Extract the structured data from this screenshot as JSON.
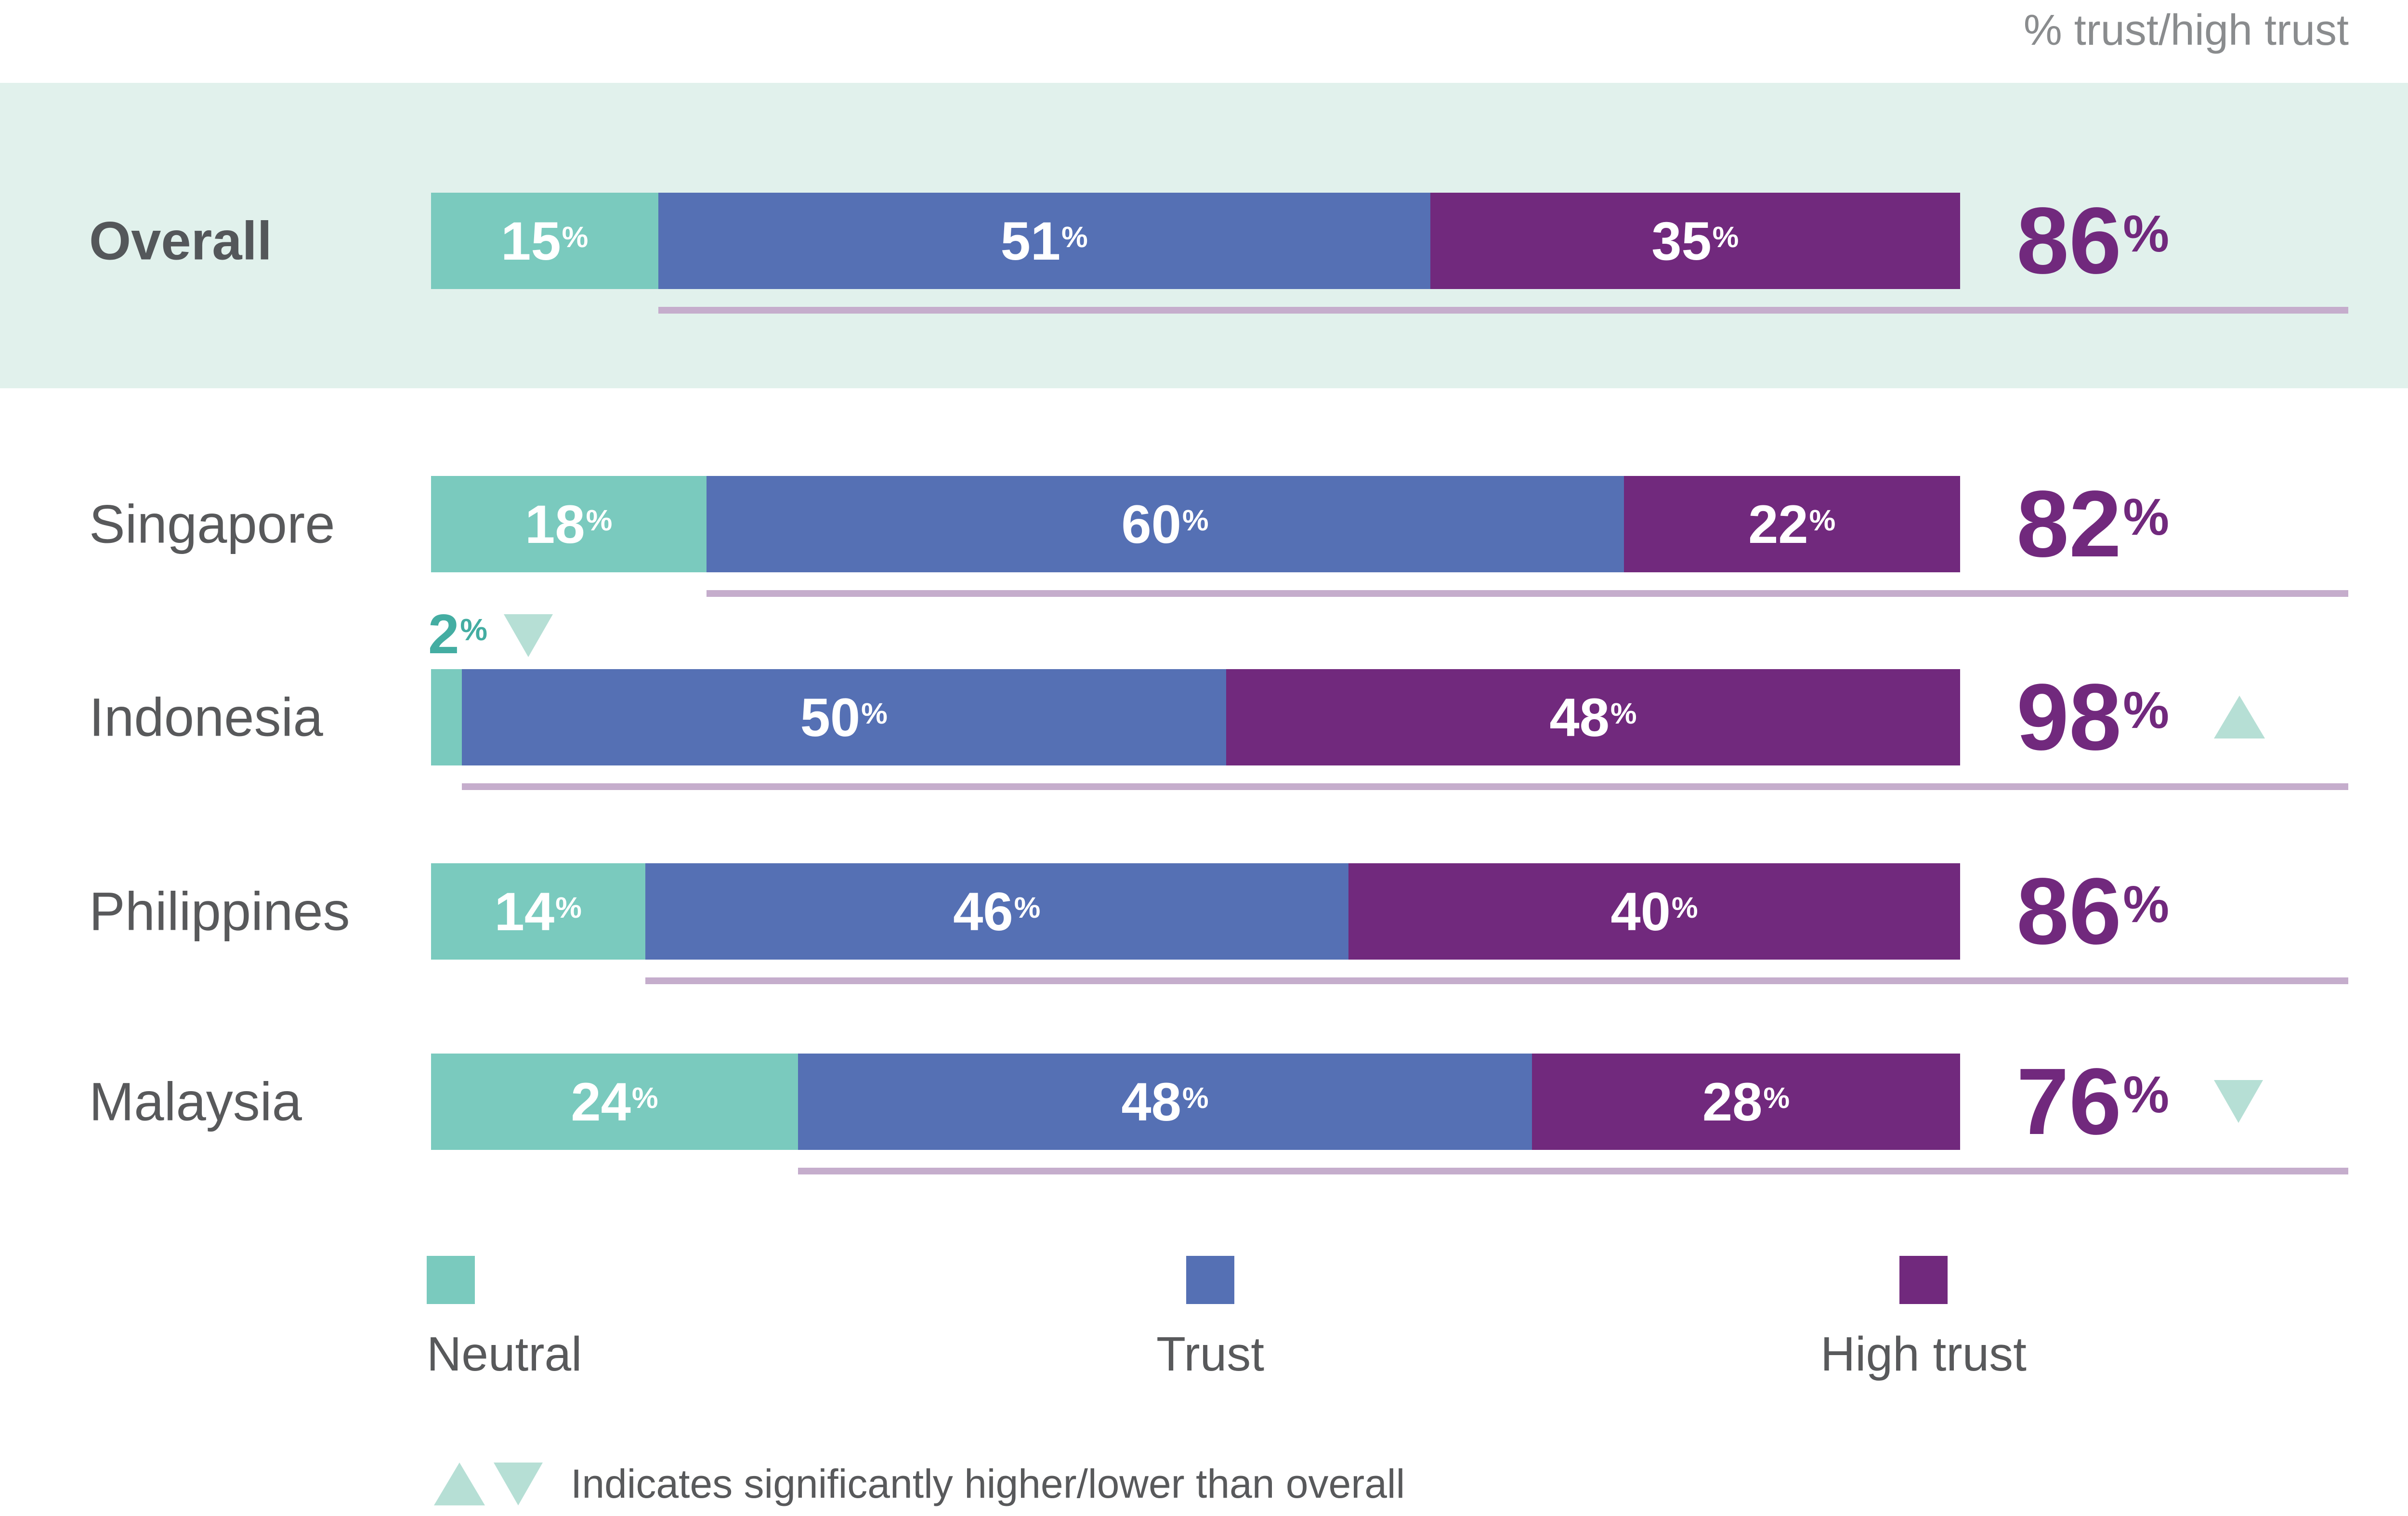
{
  "header": {
    "axis_note": "% trust/high trust"
  },
  "chart_data": {
    "type": "bar",
    "stacked": true,
    "orientation": "horizontal",
    "unit": "%",
    "categories": [
      "Overall",
      "Singapore",
      "Indonesia",
      "Philippines",
      "Malaysia"
    ],
    "series": [
      {
        "name": "Neutral",
        "values": [
          15,
          18,
          2,
          14,
          24
        ]
      },
      {
        "name": "Trust",
        "values": [
          51,
          60,
          50,
          46,
          48
        ]
      },
      {
        "name": "High trust",
        "values": [
          35,
          22,
          48,
          40,
          28
        ]
      }
    ],
    "totals": {
      "column_label": "% trust/high trust",
      "values": [
        86,
        82,
        98,
        86,
        76
      ]
    },
    "total_significance": [
      null,
      null,
      "higher",
      null,
      "lower"
    ],
    "neutral_significance": [
      null,
      null,
      "lower",
      null,
      null
    ],
    "highlighted_row": "Overall",
    "legend_position": "bottom",
    "xlim": [
      0,
      100
    ],
    "grid": false
  },
  "legend": {
    "items": [
      {
        "label": "Neutral"
      },
      {
        "label": "Trust"
      },
      {
        "label": "High trust"
      }
    ]
  },
  "note": {
    "text": "Indicates significantly higher/lower than overall"
  },
  "colors": {
    "neutral": "#7ACABE",
    "trust": "#5570B4",
    "high_trust": "#71297D",
    "total_text": "#71297D",
    "band": "#E1F1EC",
    "underline": "#C5ADCC",
    "row_label": "#58595B",
    "axis_note": "#8A8C8E",
    "annotation": "#44ADA2",
    "sig_triangle": "#B6DFD5",
    "value_text": "#FFFFFF"
  }
}
